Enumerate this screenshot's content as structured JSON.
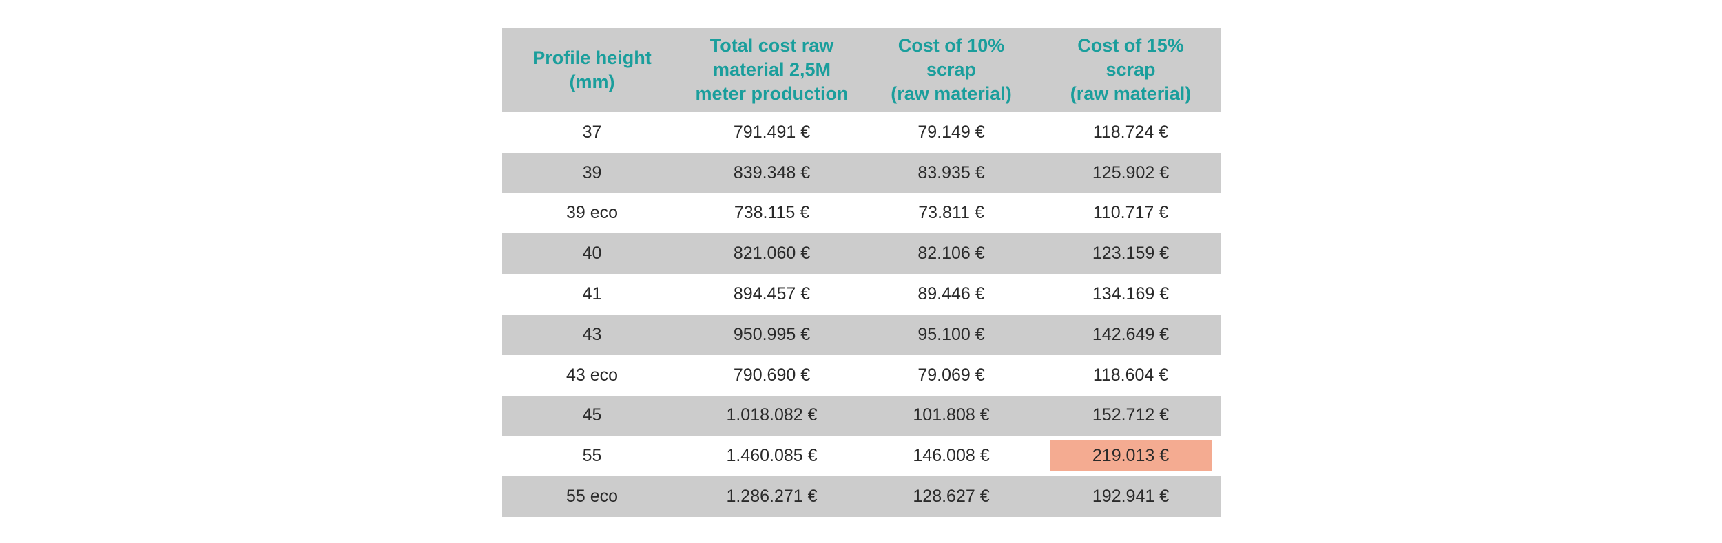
{
  "table": {
    "headers": [
      [
        "Profile height",
        "(mm)"
      ],
      [
        "Total cost raw",
        "material 2,5M",
        "meter production"
      ],
      [
        "Cost of 10%",
        "scrap",
        "(raw material)"
      ],
      [
        "Cost of 15%",
        "scrap",
        "(raw material)"
      ]
    ],
    "rows": [
      [
        "37",
        "791.491 €",
        "79.149 €",
        "118.724 €"
      ],
      [
        "39",
        "839.348 €",
        "83.935 €",
        "125.902 €"
      ],
      [
        "39 eco",
        "738.115 €",
        "73.811 €",
        "110.717 €"
      ],
      [
        "40",
        "821.060 €",
        "82.106 €",
        "123.159 €"
      ],
      [
        "41",
        "894.457 €",
        "89.446 €",
        "134.169 €"
      ],
      [
        "43",
        "950.995 €",
        "95.100 €",
        "142.649 €"
      ],
      [
        "43 eco",
        "790.690 €",
        "79.069 €",
        "118.604 €"
      ],
      [
        "45",
        "1.018.082 €",
        "101.808 €",
        "152.712 €"
      ],
      [
        "55",
        "1.460.085 €",
        "146.008 €",
        "219.013 €"
      ],
      [
        "55 eco",
        "1.286.271 €",
        "128.627 €",
        "192.941 €"
      ]
    ],
    "highlighted_cell": "row 55 / Cost of 15% scrap (raw material)"
  },
  "colors": {
    "header_text": "#1a9e9c",
    "shaded_row": "#cccccc",
    "highlight": "#f4ab91",
    "body_text": "#2a2a2a"
  }
}
